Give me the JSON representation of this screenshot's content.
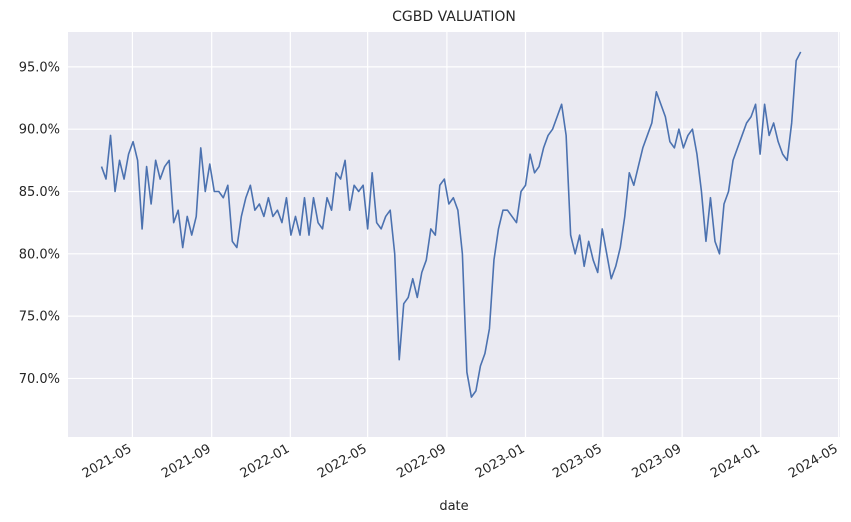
{
  "chart_data": {
    "type": "line",
    "title": "CGBD VALUATION",
    "x_label": "date",
    "color": "#4c72b0",
    "grid": true,
    "xlim": [
      "2021-01-21",
      "2024-05-03"
    ],
    "xticks": [
      "2021-05",
      "2021-09",
      "2022-01",
      "2022-05",
      "2022-09",
      "2023-01",
      "2023-05",
      "2023-09",
      "2024-01",
      "2024-05"
    ],
    "ylim": [
      65.3,
      97.8
    ],
    "yticks": [
      {
        "value": 70,
        "label": "70.0%"
      },
      {
        "value": 75,
        "label": "75.0%"
      },
      {
        "value": 80,
        "label": "80.0%"
      },
      {
        "value": 85,
        "label": "85.0%"
      },
      {
        "value": 90,
        "label": "90.0%"
      },
      {
        "value": 95,
        "label": "95.0%"
      }
    ],
    "x": [
      "2021-03-14",
      "2021-03-21",
      "2021-03-28",
      "2021-04-04",
      "2021-04-11",
      "2021-04-18",
      "2021-04-25",
      "2021-05-02",
      "2021-05-09",
      "2021-05-16",
      "2021-05-23",
      "2021-05-30",
      "2021-06-06",
      "2021-06-13",
      "2021-06-20",
      "2021-06-27",
      "2021-07-04",
      "2021-07-11",
      "2021-07-18",
      "2021-07-25",
      "2021-08-01",
      "2021-08-08",
      "2021-08-15",
      "2021-08-22",
      "2021-08-29",
      "2021-09-05",
      "2021-09-12",
      "2021-09-19",
      "2021-09-26",
      "2021-10-03",
      "2021-10-10",
      "2021-10-17",
      "2021-10-24",
      "2021-10-31",
      "2021-11-07",
      "2021-11-14",
      "2021-11-21",
      "2021-11-28",
      "2021-12-05",
      "2021-12-12",
      "2021-12-19",
      "2021-12-26",
      "2022-01-02",
      "2022-01-09",
      "2022-01-16",
      "2022-01-23",
      "2022-01-30",
      "2022-02-06",
      "2022-02-13",
      "2022-02-20",
      "2022-02-27",
      "2022-03-06",
      "2022-03-13",
      "2022-03-20",
      "2022-03-27",
      "2022-04-03",
      "2022-04-10",
      "2022-04-17",
      "2022-04-24",
      "2022-05-01",
      "2022-05-08",
      "2022-05-15",
      "2022-05-22",
      "2022-05-29",
      "2022-06-05",
      "2022-06-12",
      "2022-06-19",
      "2022-06-26",
      "2022-07-03",
      "2022-07-10",
      "2022-07-17",
      "2022-07-24",
      "2022-07-31",
      "2022-08-07",
      "2022-08-14",
      "2022-08-21",
      "2022-08-28",
      "2022-09-04",
      "2022-09-11",
      "2022-09-18",
      "2022-09-25",
      "2022-10-02",
      "2022-10-09",
      "2022-10-16",
      "2022-10-23",
      "2022-10-30",
      "2022-11-06",
      "2022-11-13",
      "2022-11-20",
      "2022-11-27",
      "2022-12-04",
      "2022-12-11",
      "2022-12-18",
      "2022-12-25",
      "2023-01-01",
      "2023-01-08",
      "2023-01-15",
      "2023-01-22",
      "2023-01-29",
      "2023-02-05",
      "2023-02-12",
      "2023-02-19",
      "2023-02-26",
      "2023-03-05",
      "2023-03-12",
      "2023-03-19",
      "2023-03-26",
      "2023-04-02",
      "2023-04-09",
      "2023-04-16",
      "2023-04-23",
      "2023-04-30",
      "2023-05-07",
      "2023-05-14",
      "2023-05-21",
      "2023-05-28",
      "2023-06-04",
      "2023-06-11",
      "2023-06-18",
      "2023-06-25",
      "2023-07-02",
      "2023-07-09",
      "2023-07-16",
      "2023-07-23",
      "2023-07-30",
      "2023-08-06",
      "2023-08-13",
      "2023-08-20",
      "2023-08-27",
      "2023-09-03",
      "2023-09-10",
      "2023-09-17",
      "2023-09-24",
      "2023-10-01",
      "2023-10-08",
      "2023-10-15",
      "2023-10-22",
      "2023-10-29",
      "2023-11-05",
      "2023-11-12",
      "2023-11-19",
      "2023-11-26",
      "2023-12-03",
      "2023-12-10",
      "2023-12-17",
      "2023-12-24",
      "2023-12-31",
      "2024-01-07",
      "2024-01-14",
      "2024-01-21",
      "2024-01-28",
      "2024-02-04",
      "2024-02-11",
      "2024-02-18",
      "2024-02-25",
      "2024-03-03"
    ],
    "values": [
      87.0,
      86.0,
      89.5,
      85.0,
      87.5,
      86.0,
      88.0,
      89.0,
      87.5,
      82.0,
      87.0,
      84.0,
      87.5,
      86.0,
      87.0,
      87.5,
      82.5,
      83.5,
      80.5,
      83.0,
      81.5,
      83.0,
      88.5,
      85.0,
      87.2,
      85.0,
      85.0,
      84.5,
      85.5,
      81.0,
      80.5,
      83.0,
      84.5,
      85.5,
      83.5,
      84.0,
      83.0,
      84.5,
      83.0,
      83.5,
      82.5,
      84.5,
      81.5,
      83.0,
      81.5,
      84.5,
      81.5,
      84.5,
      82.5,
      82.0,
      84.5,
      83.5,
      86.5,
      86.0,
      87.5,
      83.5,
      85.5,
      85.0,
      85.5,
      82.0,
      86.5,
      82.5,
      82.0,
      83.0,
      83.5,
      80.0,
      71.5,
      76.0,
      76.5,
      78.0,
      76.5,
      78.5,
      79.5,
      82.0,
      81.5,
      85.5,
      86.0,
      84.0,
      84.5,
      83.5,
      80.0,
      70.5,
      68.5,
      69.0,
      71.0,
      72.0,
      74.0,
      79.5,
      82.0,
      83.5,
      83.5,
      83.0,
      82.5,
      85.0,
      85.5,
      88.0,
      86.5,
      87.0,
      88.5,
      89.5,
      90.0,
      91.0,
      92.0,
      89.5,
      81.5,
      80.0,
      81.5,
      79.0,
      81.0,
      79.5,
      78.5,
      82.0,
      80.0,
      78.0,
      79.0,
      80.5,
      83.0,
      86.5,
      85.5,
      87.0,
      88.5,
      89.5,
      90.5,
      93.0,
      92.0,
      91.0,
      89.0,
      88.5,
      90.0,
      88.5,
      89.5,
      90.0,
      88.0,
      85.0,
      81.0,
      84.5,
      81.0,
      80.0,
      84.0,
      85.0,
      87.5,
      88.5,
      89.5,
      90.5,
      91.0,
      92.0,
      88.0,
      92.0,
      89.5,
      90.5,
      89.0,
      88.0,
      87.5,
      90.5,
      95.5,
      96.2
    ]
  }
}
